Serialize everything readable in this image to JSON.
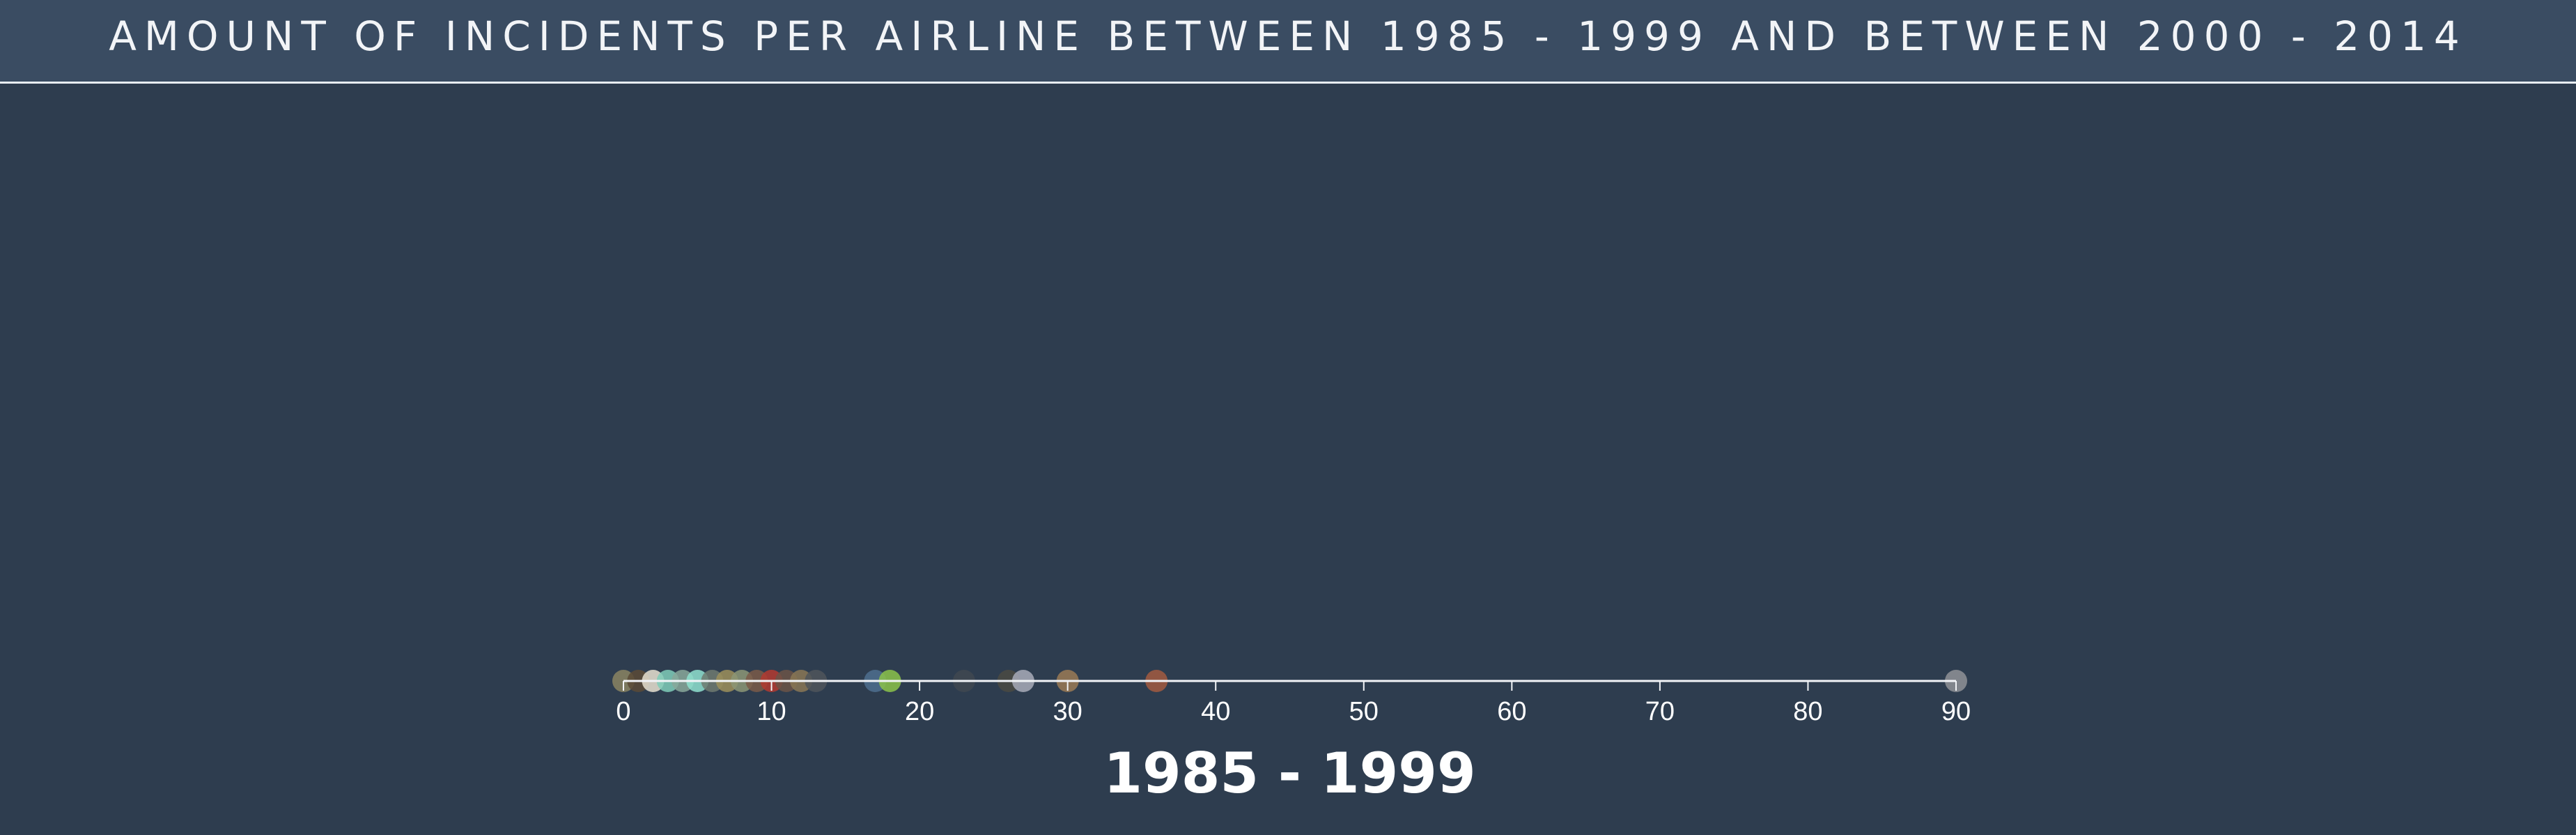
{
  "header": {
    "title": "AMOUNT OF INCIDENTS PER AIRLINE BETWEEN 1985 - 1999 AND BETWEEN 2000 - 2014"
  },
  "colors": {
    "background": "#2e3d4f",
    "header_background": "#3a4c62",
    "axis": "#f2f4f7",
    "text": "#ffffff"
  },
  "chart_data": {
    "type": "scatter",
    "title": "",
    "xlabel": "1985 - 1999",
    "ylabel": "",
    "xlim": [
      0,
      90
    ],
    "grid": false,
    "legend": "none",
    "ticks": [
      0,
      10,
      20,
      30,
      40,
      50,
      60,
      70,
      80,
      90
    ],
    "tick_labels": [
      "0",
      "10",
      "20",
      "30",
      "40",
      "50",
      "60",
      "70",
      "80",
      "90"
    ],
    "points": [
      {
        "x": 0,
        "color": "#8a8462"
      },
      {
        "x": 1,
        "color": "#5b4a36"
      },
      {
        "x": 2,
        "color": "#e6e0d0"
      },
      {
        "x": 3,
        "color": "#7fcdb8"
      },
      {
        "x": 4,
        "color": "#88a89a"
      },
      {
        "x": 5,
        "color": "#8fe0cf"
      },
      {
        "x": 6,
        "color": "#6e7a70"
      },
      {
        "x": 7,
        "color": "#9c8f5a"
      },
      {
        "x": 8,
        "color": "#8c9676"
      },
      {
        "x": 9,
        "color": "#7a5a48"
      },
      {
        "x": 10,
        "color": "#b33a30"
      },
      {
        "x": 11,
        "color": "#6b5447"
      },
      {
        "x": 12,
        "color": "#8a7755"
      },
      {
        "x": 13,
        "color": "#4f555a"
      },
      {
        "x": 17,
        "color": "#4d6f8e"
      },
      {
        "x": 18,
        "color": "#8bc34a"
      },
      {
        "x": 23,
        "color": "#3f4850"
      },
      {
        "x": 26,
        "color": "#4a4a42"
      },
      {
        "x": 27,
        "color": "#a8abb8"
      },
      {
        "x": 30,
        "color": "#9a7a55"
      },
      {
        "x": 36,
        "color": "#a25a40"
      },
      {
        "x": 90,
        "color": "#8f9297"
      }
    ]
  }
}
